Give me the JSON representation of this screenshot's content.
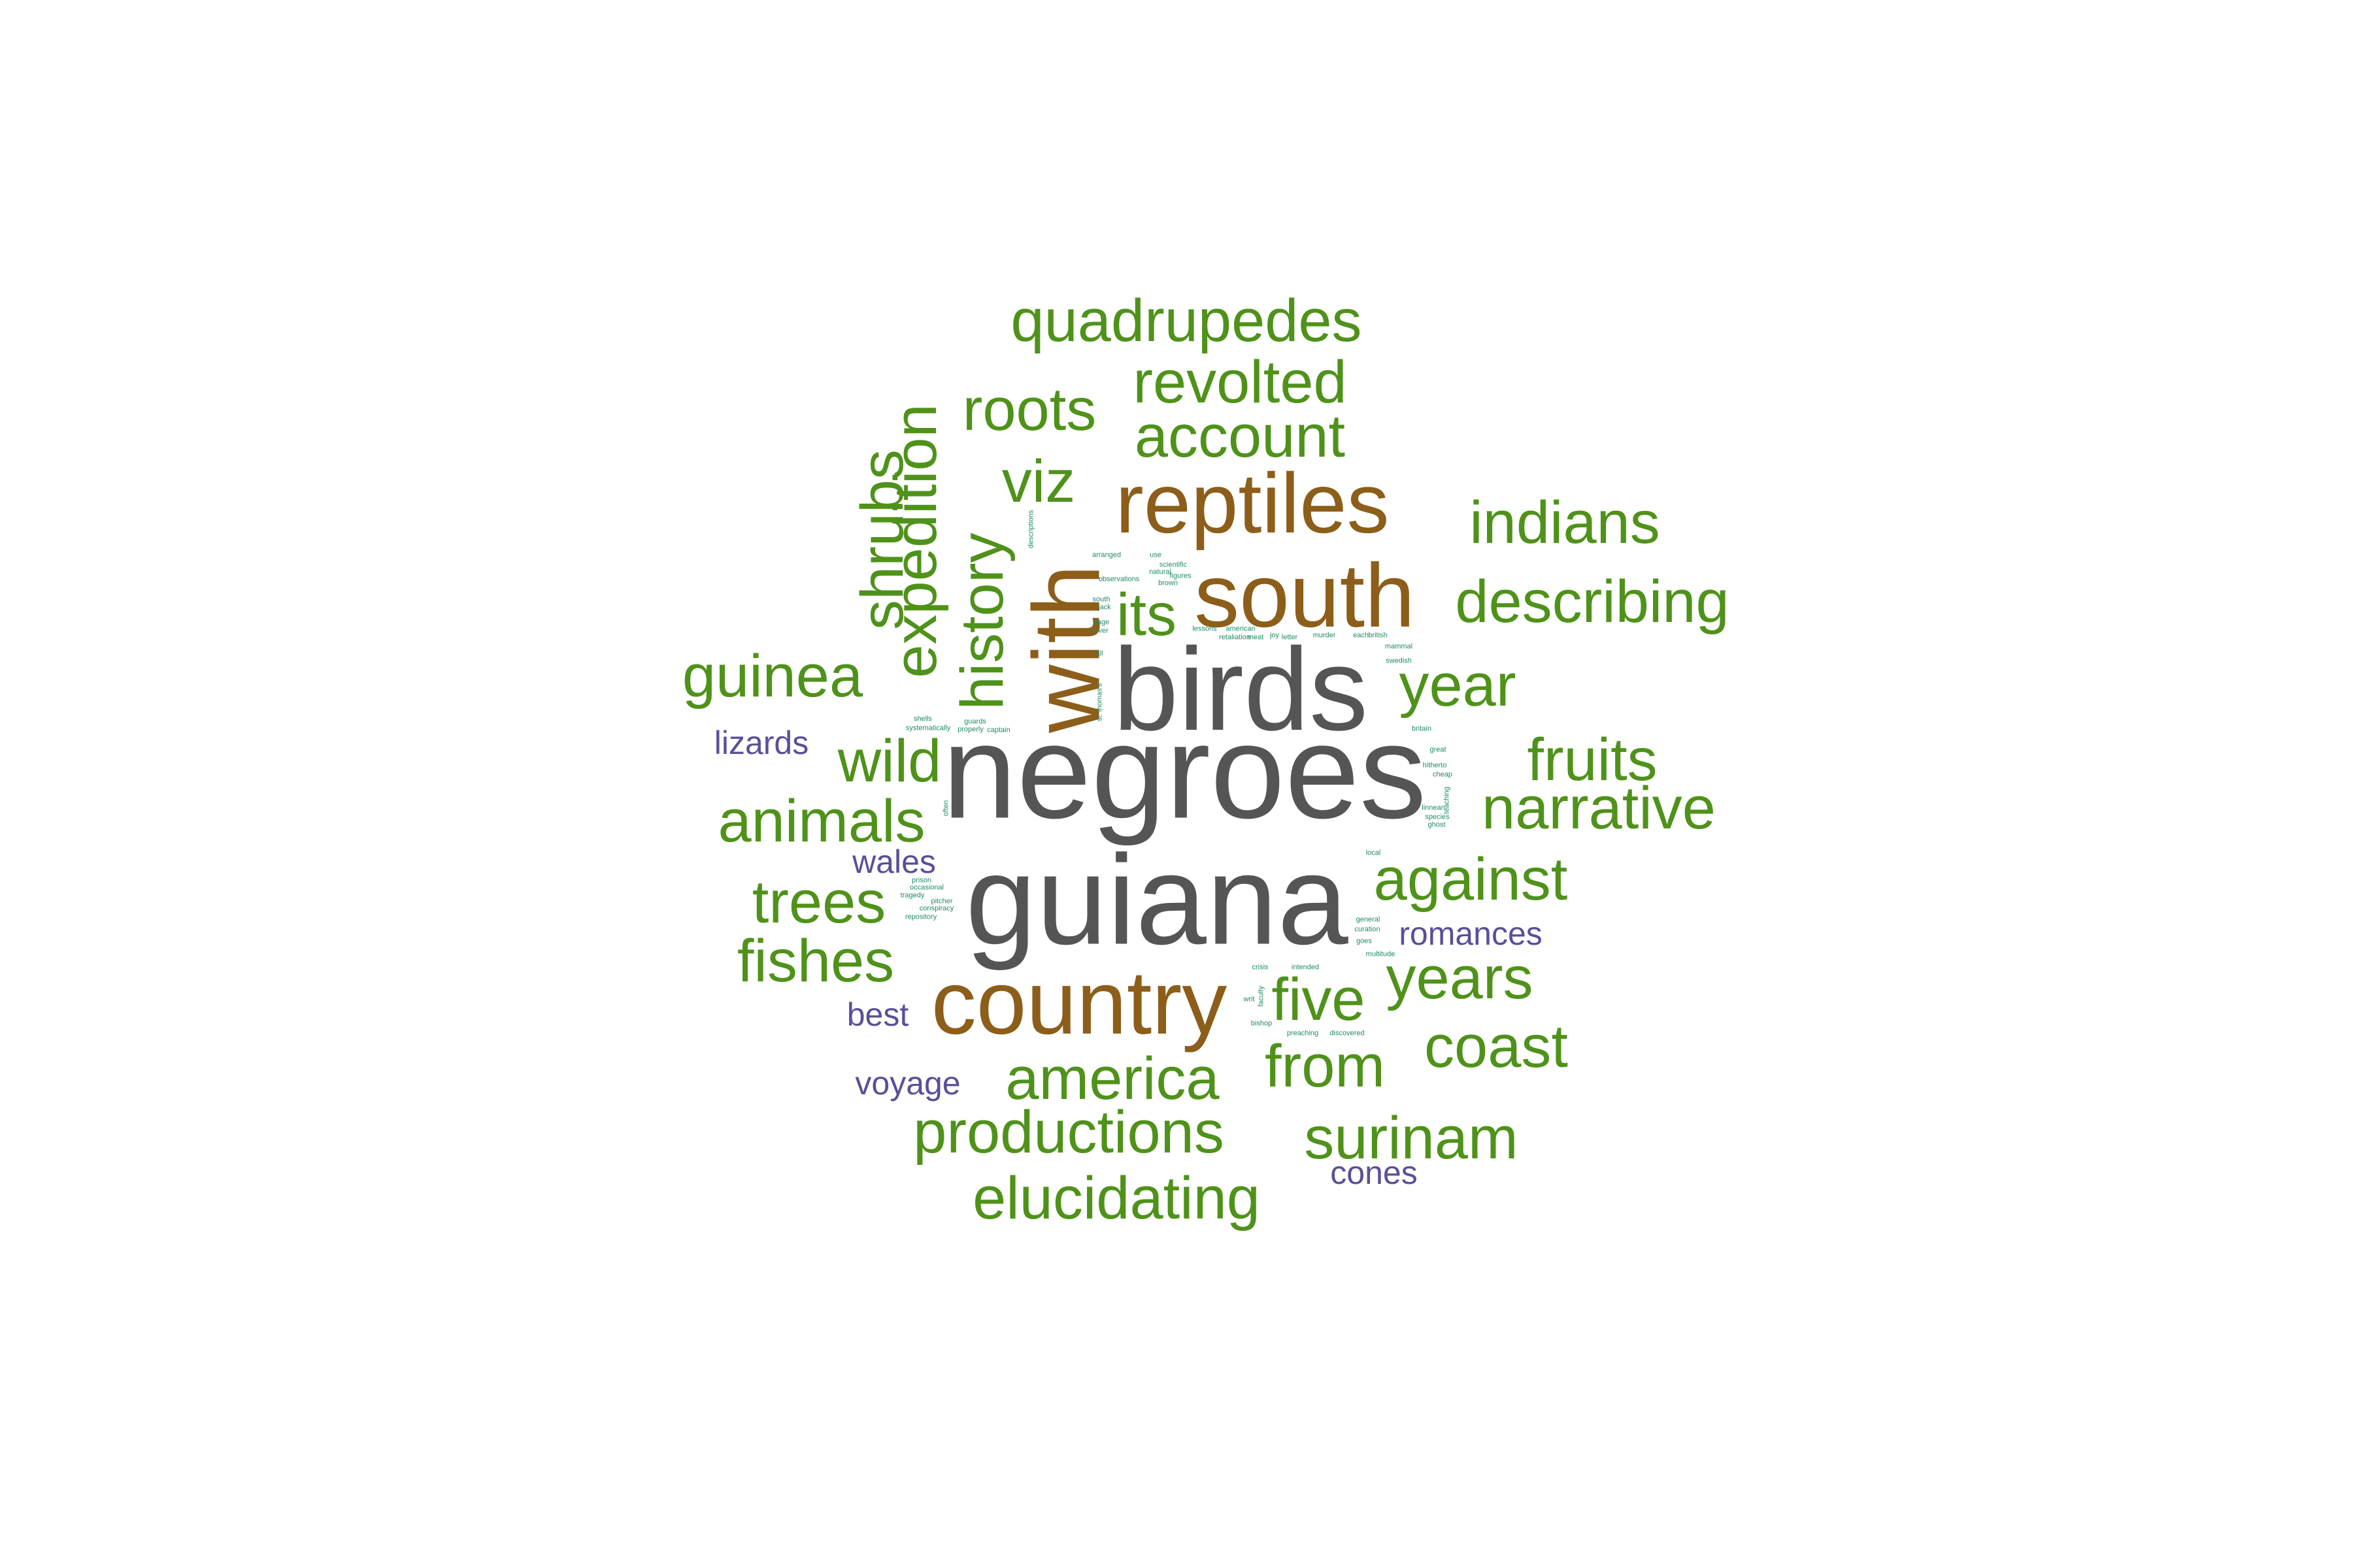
{
  "palette": {
    "grey": "#555555",
    "brown": "#8c5e1a",
    "green": "#4f921a",
    "purple": "#5a4f99",
    "teal": "#1d8a6a"
  },
  "words": [
    {
      "text": "negroes",
      "group": "grey"
    },
    {
      "text": "birds",
      "group": "grey"
    },
    {
      "text": "guiana",
      "group": "grey"
    },
    {
      "text": "reptiles",
      "group": "brown"
    },
    {
      "text": "south",
      "group": "brown"
    },
    {
      "text": "with",
      "group": "brown"
    },
    {
      "text": "country",
      "group": "brown"
    },
    {
      "text": "quadrupedes",
      "group": "green"
    },
    {
      "text": "revolted",
      "group": "green"
    },
    {
      "text": "roots",
      "group": "green"
    },
    {
      "text": "account",
      "group": "green"
    },
    {
      "text": "viz",
      "group": "green"
    },
    {
      "text": "indians",
      "group": "green"
    },
    {
      "text": "describing",
      "group": "green"
    },
    {
      "text": "its",
      "group": "green"
    },
    {
      "text": "shrubs",
      "group": "green"
    },
    {
      "text": "expedition",
      "group": "green"
    },
    {
      "text": "history",
      "group": "green"
    },
    {
      "text": "guinea",
      "group": "green"
    },
    {
      "text": "year",
      "group": "green"
    },
    {
      "text": "wild",
      "group": "green"
    },
    {
      "text": "fruits",
      "group": "green"
    },
    {
      "text": "narrative",
      "group": "green"
    },
    {
      "text": "animals",
      "group": "green"
    },
    {
      "text": "against",
      "group": "green"
    },
    {
      "text": "trees",
      "group": "green"
    },
    {
      "text": "fishes",
      "group": "green"
    },
    {
      "text": "years",
      "group": "green"
    },
    {
      "text": "five",
      "group": "green"
    },
    {
      "text": "coast",
      "group": "green"
    },
    {
      "text": "america",
      "group": "green"
    },
    {
      "text": "from",
      "group": "green"
    },
    {
      "text": "productions",
      "group": "green"
    },
    {
      "text": "surinam",
      "group": "green"
    },
    {
      "text": "elucidating",
      "group": "green"
    },
    {
      "text": "lizards",
      "group": "purple"
    },
    {
      "text": "wales",
      "group": "purple"
    },
    {
      "text": "romances",
      "group": "purple"
    },
    {
      "text": "best",
      "group": "purple"
    },
    {
      "text": "voyage",
      "group": "purple"
    },
    {
      "text": "cones",
      "group": "purple"
    },
    {
      "text": "descriptions",
      "group": "teal"
    },
    {
      "text": "arranged",
      "group": "teal"
    },
    {
      "text": "use",
      "group": "teal"
    },
    {
      "text": "scientific",
      "group": "teal"
    },
    {
      "text": "natural",
      "group": "teal"
    },
    {
      "text": "figures",
      "group": "teal"
    },
    {
      "text": "observations",
      "group": "teal"
    },
    {
      "text": "brown",
      "group": "teal"
    },
    {
      "text": "south",
      "group": "teal"
    },
    {
      "text": "jack",
      "group": "teal"
    },
    {
      "text": "page",
      "group": "teal"
    },
    {
      "text": "never",
      "group": "teal"
    },
    {
      "text": "lessons",
      "group": "teal"
    },
    {
      "text": "american",
      "group": "teal"
    },
    {
      "text": "retaliation",
      "group": "teal"
    },
    {
      "text": "meat",
      "group": "teal"
    },
    {
      "text": "joy",
      "group": "teal"
    },
    {
      "text": "letter",
      "group": "teal"
    },
    {
      "text": "murder",
      "group": "teal"
    },
    {
      "text": "each",
      "group": "teal"
    },
    {
      "text": "british",
      "group": "teal"
    },
    {
      "text": "mammal",
      "group": "teal"
    },
    {
      "text": "swedish",
      "group": "teal"
    },
    {
      "text": "all",
      "group": "teal"
    },
    {
      "text": "britain",
      "group": "teal"
    },
    {
      "text": "shells",
      "group": "teal"
    },
    {
      "text": "systematically",
      "group": "teal"
    },
    {
      "text": "guards",
      "group": "teal"
    },
    {
      "text": "properly",
      "group": "teal"
    },
    {
      "text": "captain",
      "group": "teal"
    },
    {
      "text": "great",
      "group": "teal"
    },
    {
      "text": "hitherto",
      "group": "teal"
    },
    {
      "text": "cheap",
      "group": "teal"
    },
    {
      "text": "linnean",
      "group": "teal"
    },
    {
      "text": "species",
      "group": "teal"
    },
    {
      "text": "ghost",
      "group": "teal"
    },
    {
      "text": "often",
      "group": "teal"
    },
    {
      "text": "local",
      "group": "teal"
    },
    {
      "text": "prison",
      "group": "teal"
    },
    {
      "text": "occasional",
      "group": "teal"
    },
    {
      "text": "tragedy",
      "group": "teal"
    },
    {
      "text": "pitcher",
      "group": "teal"
    },
    {
      "text": "conspiracy",
      "group": "teal"
    },
    {
      "text": "repository",
      "group": "teal"
    },
    {
      "text": "general",
      "group": "teal"
    },
    {
      "text": "curation",
      "group": "teal"
    },
    {
      "text": "goes",
      "group": "teal"
    },
    {
      "text": "multitude",
      "group": "teal"
    },
    {
      "text": "crisis",
      "group": "teal"
    },
    {
      "text": "intended",
      "group": "teal"
    },
    {
      "text": "bishop",
      "group": "teal"
    },
    {
      "text": "preaching",
      "group": "teal"
    },
    {
      "text": "discovered",
      "group": "teal"
    },
    {
      "text": "st. thomas's",
      "group": "teal"
    },
    {
      "text": "faculty",
      "group": "teal"
    },
    {
      "text": "teaching",
      "group": "teal"
    },
    {
      "text": "writ",
      "group": "teal"
    }
  ]
}
